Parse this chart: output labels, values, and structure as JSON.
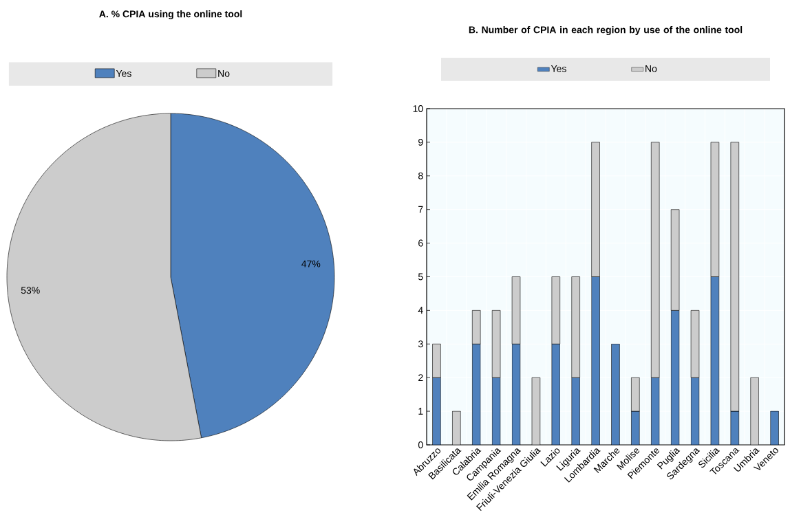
{
  "chart_data": [
    {
      "type": "pie",
      "title": "A. % CPIA using the online tool",
      "categories": [
        "Yes",
        "No"
      ],
      "values": [
        47,
        53
      ],
      "colors": [
        "#4f81bd",
        "#cccccc"
      ],
      "value_labels": [
        "47%",
        "53%"
      ],
      "legend": "top"
    },
    {
      "type": "bar",
      "title": "B. Number of CPIA in each region by use of the online tool",
      "categories": [
        "Abruzzo",
        "Basilicata",
        "Calabria",
        "Campania",
        "Emilia Romagna",
        "Friuli-Venezia Giulia",
        "Lazio",
        "Liguria",
        "Lombardia",
        "Marche",
        "Molise",
        "Piemonte",
        "Puglia",
        "Sardegna",
        "Sicilia",
        "Toscana",
        "Umbria",
        "Veneto"
      ],
      "series": [
        {
          "name": "Yes",
          "color": "#4f81bd",
          "values": [
            2,
            0,
            3,
            2,
            3,
            0,
            3,
            2,
            5,
            3,
            1,
            2,
            4,
            2,
            5,
            1,
            0,
            1
          ]
        },
        {
          "name": "No",
          "color": "#cccccc",
          "values": [
            1,
            1,
            1,
            2,
            2,
            2,
            2,
            3,
            4,
            0,
            1,
            7,
            3,
            2,
            4,
            8,
            2,
            0
          ]
        }
      ],
      "stacked": true,
      "ylim": [
        0,
        10
      ],
      "yticks": [
        0,
        1,
        2,
        3,
        4,
        5,
        6,
        7,
        8,
        9,
        10
      ],
      "grid": true,
      "legend": "top"
    }
  ]
}
